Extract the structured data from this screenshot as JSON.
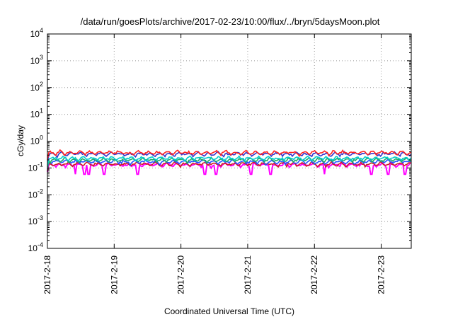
{
  "chart_data": {
    "type": "line",
    "title": "/data/run/goesPlots/archive/2017-02-23/10:00/flux/../bryn/5daysMoon.plot",
    "xlabel": "Coordinated Universal Time (UTC)",
    "ylabel": "cGy/day",
    "yscale": "log",
    "ylim": [
      0.0001,
      10000
    ],
    "xlim": [
      0,
      5.45
    ],
    "grid": true,
    "x_ticks": [
      {
        "x": 0,
        "label": "2017-2-18"
      },
      {
        "x": 1,
        "label": "2017-2-19"
      },
      {
        "x": 2,
        "label": "2017-2-20"
      },
      {
        "x": 3,
        "label": "2017-2-21"
      },
      {
        "x": 4,
        "label": "2017-2-22"
      },
      {
        "x": 5,
        "label": "2017-2-23"
      }
    ],
    "y_ticks": [
      {
        "value": 0.0001,
        "base": "10",
        "exp": "-4"
      },
      {
        "value": 0.001,
        "base": "10",
        "exp": "-3"
      },
      {
        "value": 0.01,
        "base": "10",
        "exp": "-2"
      },
      {
        "value": 0.1,
        "base": "10",
        "exp": "-1"
      },
      {
        "value": 1,
        "base": "10",
        "exp": "0"
      },
      {
        "value": 10,
        "base": "10",
        "exp": "1"
      },
      {
        "value": 100,
        "base": "10",
        "exp": "2"
      },
      {
        "value": 1000,
        "base": "10",
        "exp": "3"
      },
      {
        "value": 10000,
        "base": "10",
        "exp": "4"
      }
    ],
    "series": [
      {
        "color": "#ff00ff",
        "base": 0.13,
        "dips": [
          0.42,
          0.55,
          0.62,
          0.85,
          1.35,
          2.35,
          2.52,
          3.05,
          3.35,
          4.15,
          4.85,
          5.1,
          5.35
        ]
      },
      {
        "color": "#cc2222",
        "base": 0.14,
        "dips": []
      },
      {
        "color": "#2255ff",
        "base": 0.17,
        "dips": []
      },
      {
        "color": "#22aa66",
        "base": 0.2,
        "dips": []
      },
      {
        "color": "#00cccc",
        "base": 0.23,
        "dips": []
      },
      {
        "color": "#3333cc",
        "base": 0.33,
        "dips": []
      },
      {
        "color": "#ff2222",
        "base": 0.37,
        "dips": []
      }
    ]
  }
}
